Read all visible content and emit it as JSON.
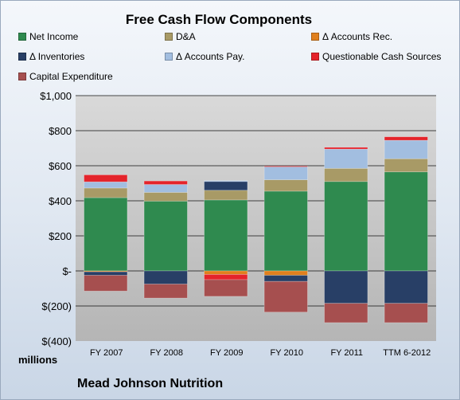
{
  "chart_data": {
    "type": "bar",
    "stacked": true,
    "title": "Free Cash Flow Components",
    "unit_label": "millions",
    "footer": "Mead Johnson Nutrition",
    "categories": [
      "FY 2007",
      "FY 2008",
      "FY 2009",
      "FY 2010",
      "FY 2011",
      "TTM 6-2012"
    ],
    "ylim": [
      -400,
      1000
    ],
    "yticks": [
      {
        "value": 1000,
        "label": "$1,000"
      },
      {
        "value": 800,
        "label": "$800"
      },
      {
        "value": 600,
        "label": "$600"
      },
      {
        "value": 400,
        "label": "$400"
      },
      {
        "value": 200,
        "label": "$200"
      },
      {
        "value": 0,
        "label": "$-"
      },
      {
        "value": -200,
        "label": "$(200)"
      },
      {
        "value": -400,
        "label": "$(400)"
      }
    ],
    "grid": true,
    "legend_position": "top",
    "series": [
      {
        "name": "Net Income",
        "color": "#2f8a4f",
        "values": [
          418,
          398,
          405,
          455,
          510,
          565
        ]
      },
      {
        "name": "D&A",
        "color": "#a89a66",
        "values": [
          55,
          50,
          55,
          65,
          75,
          75
        ]
      },
      {
        "name": "Δ Accounts Rec.",
        "color": "#e0801e",
        "values": [
          -5,
          0,
          -20,
          -25,
          0,
          0
        ]
      },
      {
        "name": "Δ Inventories",
        "color": "#283f66",
        "values": [
          -20,
          -75,
          50,
          -35,
          -185,
          -185
        ]
      },
      {
        "name": "Δ Accounts Pay.",
        "color": "#a2bee0",
        "values": [
          35,
          45,
          5,
          75,
          110,
          105
        ]
      },
      {
        "name": "Questionable Cash Sources",
        "color": "#e4242b",
        "values": [
          40,
          20,
          -30,
          3,
          10,
          20
        ]
      },
      {
        "name": "Capital Expenditure",
        "color": "#a64f4f",
        "values": [
          -90,
          -80,
          -95,
          -175,
          -110,
          -110
        ]
      }
    ]
  }
}
